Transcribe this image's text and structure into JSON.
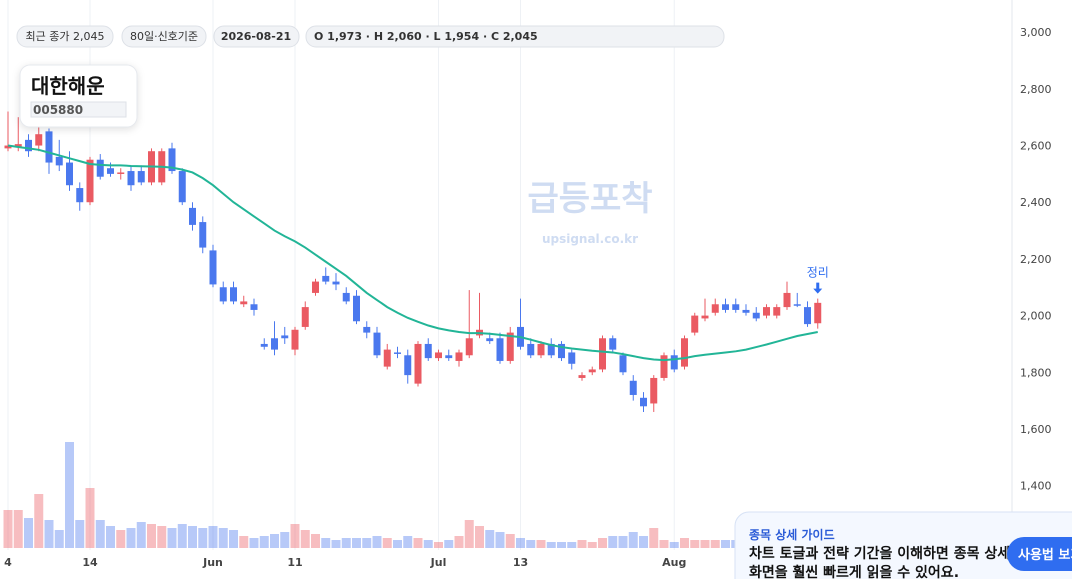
{
  "header": {
    "badges": [
      "최근 종가 2,045",
      "80일·신호기준",
      "2026-08-21",
      "O 1,973 · H 2,060 · L 1,954 · C 2,045"
    ],
    "name": "대한해운",
    "code": "005880"
  },
  "watermark": {
    "title": "급등포착",
    "url": "upsignal.co.kr"
  },
  "guide": {
    "title": "종목 상세 가이드",
    "lines": [
      "차트 토글과 전략 기간을 이해하면 종목 상세",
      "화면을 훨씬 빠르게 읽을 수 있어요."
    ],
    "button": "사용법 보기"
  },
  "chart_data": {
    "type": "candlestick",
    "annotation": "정리",
    "categories": [
      "4",
      null,
      null,
      null,
      null,
      null,
      null,
      null,
      "14",
      null,
      null,
      null,
      null,
      null,
      null,
      null,
      null,
      null,
      null,
      null,
      "Jun",
      null,
      null,
      null,
      null,
      null,
      null,
      null,
      "11",
      null,
      null,
      null,
      null,
      null,
      null,
      null,
      null,
      null,
      null,
      null,
      null,
      null,
      "Jul",
      null,
      null,
      null,
      null,
      null,
      null,
      null,
      "13",
      null,
      null,
      null,
      null,
      null,
      null,
      null,
      null,
      null,
      null,
      null,
      null,
      null,
      null,
      "Aug",
      null,
      null,
      null,
      null,
      null,
      null,
      null,
      null,
      null,
      null,
      null,
      null,
      null,
      null
    ],
    "open": [
      2590,
      2595,
      2620,
      2600,
      2650,
      2560,
      2540,
      2450,
      2400,
      2550,
      2520,
      2500,
      2510,
      2510,
      2470,
      2470,
      2590,
      2510,
      2380,
      2330,
      2230,
      2100,
      2100,
      2040,
      2040,
      1900,
      1920,
      1930,
      1880,
      1960,
      2080,
      2140,
      2120,
      2080,
      2070,
      1960,
      1940,
      1820,
      1870,
      1860,
      1760,
      1900,
      1850,
      1860,
      1840,
      1860,
      1930,
      1920,
      1920,
      1840,
      1960,
      1900,
      1860,
      1900,
      1900,
      1870,
      1780,
      1800,
      1810,
      1920,
      1860,
      1770,
      1710,
      1690,
      1780,
      1860,
      1820,
      1940,
      1990,
      2010,
      2040,
      2040,
      2020,
      2010,
      2000,
      2000,
      2030,
      2040,
      2030,
      1973
    ],
    "high": [
      2720,
      2700,
      2640,
      2680,
      2660,
      2620,
      2580,
      2470,
      2560,
      2570,
      2540,
      2520,
      2530,
      2530,
      2590,
      2590,
      2610,
      2520,
      2400,
      2350,
      2250,
      2120,
      2120,
      2070,
      2060,
      1920,
      1980,
      1960,
      1960,
      2050,
      2130,
      2170,
      2150,
      2100,
      2090,
      1980,
      1960,
      1900,
      1890,
      1880,
      1910,
      1920,
      1880,
      1880,
      1880,
      2090,
      2080,
      1940,
      1940,
      1960,
      2060,
      1920,
      1910,
      1920,
      1910,
      1880,
      1800,
      1820,
      1930,
      1930,
      1870,
      1790,
      1730,
      1790,
      1870,
      1880,
      1930,
      2010,
      2060,
      2060,
      2060,
      2060,
      2040,
      2030,
      2040,
      2040,
      2120,
      2080,
      2050,
      2060
    ],
    "low": [
      2580,
      2580,
      2560,
      2580,
      2500,
      2510,
      2440,
      2370,
      2390,
      2480,
      2490,
      2480,
      2440,
      2460,
      2460,
      2460,
      2500,
      2390,
      2300,
      2220,
      2100,
      2040,
      2040,
      2030,
      2000,
      1880,
      1860,
      1900,
      1860,
      1950,
      2070,
      2110,
      2090,
      2040,
      1970,
      1920,
      1850,
      1810,
      1850,
      1760,
      1750,
      1840,
      1840,
      1840,
      1820,
      1850,
      1920,
      1900,
      1830,
      1830,
      1880,
      1850,
      1850,
      1850,
      1840,
      1810,
      1770,
      1790,
      1800,
      1870,
      1790,
      1700,
      1660,
      1660,
      1770,
      1800,
      1810,
      1930,
      1980,
      2000,
      2010,
      2010,
      2000,
      1980,
      1990,
      1990,
      2020,
      2030,
      1960,
      1954
    ],
    "close": [
      2600,
      2605,
      2580,
      2640,
      2540,
      2530,
      2460,
      2400,
      2550,
      2490,
      2500,
      2505,
      2460,
      2470,
      2580,
      2580,
      2510,
      2400,
      2320,
      2240,
      2110,
      2050,
      2050,
      2050,
      2020,
      1890,
      1880,
      1920,
      1950,
      2030,
      2120,
      2120,
      2110,
      2050,
      1980,
      1940,
      1860,
      1880,
      1865,
      1790,
      1900,
      1850,
      1870,
      1850,
      1870,
      1920,
      1950,
      1910,
      1840,
      1940,
      1890,
      1860,
      1900,
      1860,
      1850,
      1830,
      1790,
      1810,
      1920,
      1880,
      1800,
      1720,
      1680,
      1780,
      1860,
      1810,
      1920,
      2000,
      2000,
      2040,
      2020,
      2020,
      2010,
      1990,
      2030,
      2030,
      2080,
      2035,
      1970,
      2045
    ],
    "ma": [
      2600,
      2595,
      2590,
      2585,
      2575,
      2565,
      2555,
      2545,
      2535,
      2532,
      2530,
      2530,
      2528,
      2527,
      2526,
      2525,
      2522,
      2515,
      2505,
      2485,
      2460,
      2430,
      2400,
      2375,
      2350,
      2325,
      2300,
      2280,
      2262,
      2240,
      2215,
      2190,
      2165,
      2140,
      2110,
      2080,
      2055,
      2030,
      2010,
      1992,
      1978,
      1965,
      1955,
      1948,
      1942,
      1938,
      1938,
      1936,
      1932,
      1928,
      1924,
      1915,
      1905,
      1896,
      1889,
      1884,
      1880,
      1876,
      1873,
      1870,
      1864,
      1857,
      1850,
      1845,
      1843,
      1846,
      1850,
      1857,
      1862,
      1866,
      1870,
      1874,
      1880,
      1889,
      1898,
      1908,
      1918,
      1928,
      1935,
      1942
    ],
    "volume": [
      38,
      38,
      30,
      54,
      28,
      18,
      106,
      28,
      60,
      28,
      22,
      18,
      20,
      26,
      24,
      22,
      20,
      24,
      22,
      20,
      22,
      20,
      18,
      12,
      10,
      12,
      14,
      16,
      24,
      18,
      14,
      10,
      8,
      10,
      10,
      10,
      12,
      10,
      8,
      12,
      10,
      8,
      6,
      8,
      12,
      28,
      22,
      18,
      16,
      14,
      10,
      8,
      8,
      6,
      6,
      6,
      8,
      6,
      10,
      12,
      12,
      16,
      12,
      20,
      8,
      6,
      10,
      8,
      8,
      8,
      8,
      8,
      8,
      8,
      8,
      8,
      8,
      8,
      8,
      8
    ],
    "up_color": "#ea5a62",
    "down_color": "#4a78ee",
    "ma_color": "#22b597",
    "ylim": [
      1300,
      3050
    ],
    "yticks": [
      {
        "value": 1400,
        "label": "1,400"
      },
      {
        "value": 1600,
        "label": "1,600"
      },
      {
        "value": 1800,
        "label": "1,800"
      },
      {
        "value": 2000,
        "label": "2,000"
      },
      {
        "value": 2200,
        "label": "2,200"
      },
      {
        "value": 2400,
        "label": "2,400"
      },
      {
        "value": 2600,
        "label": "2,600"
      },
      {
        "value": 2800,
        "label": "2,800"
      },
      {
        "value": 3000,
        "label": "3,000"
      }
    ],
    "grid": true
  }
}
